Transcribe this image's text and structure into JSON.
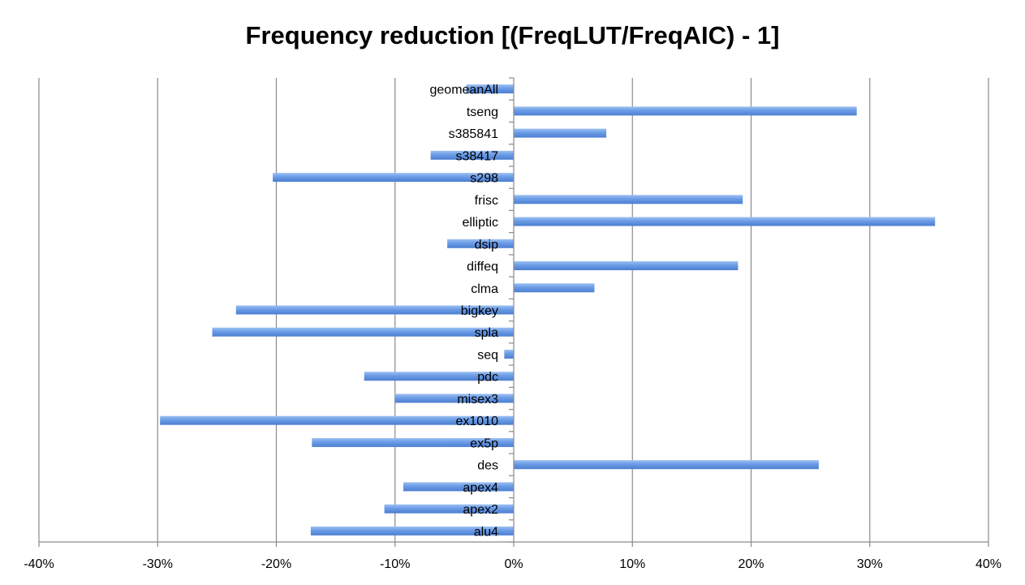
{
  "chart_data": {
    "type": "bar",
    "orientation": "horizontal",
    "title": "Frequency reduction [(FreqLUT/FreqAIC) - 1]",
    "xlabel": "",
    "ylabel": "",
    "xlim": [
      -40,
      40
    ],
    "xticks": [
      -40,
      -30,
      -20,
      -10,
      0,
      10,
      20,
      30,
      40
    ],
    "xtick_labels": [
      "-40%",
      "-30%",
      "-20%",
      "-10%",
      "0%",
      "10%",
      "20%",
      "30%",
      "40%"
    ],
    "grid": "vertical",
    "legend": "none",
    "bar_color": "#6a9be6",
    "categories": [
      "alu4",
      "apex2",
      "apex4",
      "des",
      "ex5p",
      "ex1010",
      "misex3",
      "pdc",
      "seq",
      "spla",
      "bigkey",
      "clma",
      "diffeq",
      "dsip",
      "elliptic",
      "frisc",
      "s298",
      "s38417",
      "s385841",
      "tseng",
      "geomeanAll"
    ],
    "values": [
      -17.1,
      -10.9,
      -9.3,
      25.7,
      -17.0,
      -29.8,
      -10.0,
      -12.6,
      -0.8,
      -25.4,
      -23.4,
      6.8,
      18.9,
      -5.6,
      35.5,
      19.3,
      -20.3,
      -7.0,
      7.8,
      28.9,
      -4.0
    ]
  }
}
